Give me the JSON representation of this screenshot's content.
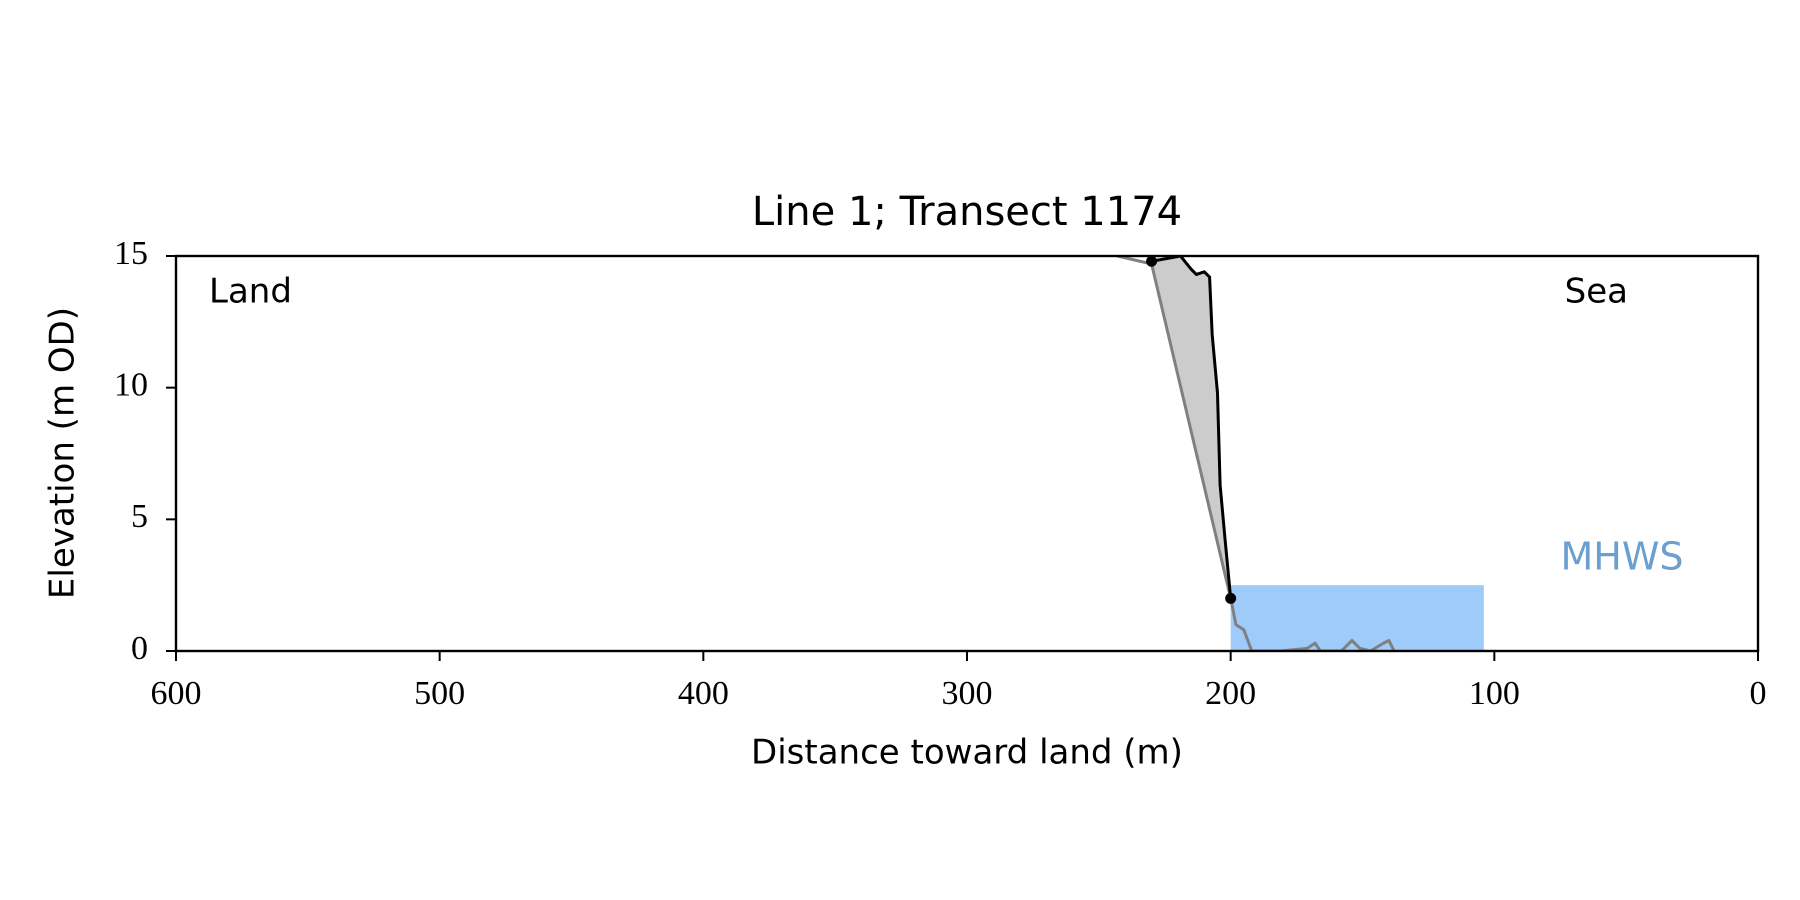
{
  "chart_data": {
    "type": "line",
    "title": "Line 1; Transect 1174",
    "x_label": "Distance toward land (m)",
    "y_label": "Elevation (m OD)",
    "annotations": [
      "Land",
      "Sea"
    ],
    "xlim": [
      600,
      0
    ],
    "xticks": [
      600,
      500,
      400,
      300,
      200,
      100,
      0
    ],
    "ylim": [
      0,
      15
    ],
    "yticks": [
      0,
      5,
      10,
      15
    ],
    "fill_between": {
      "color": "#cccccc"
    },
    "mhws": {
      "label": "MHWS",
      "level": 2.5,
      "xrange": [
        200,
        104
      ],
      "color": "#9ecbfa",
      "label_color": "#6a9fd0"
    },
    "series": [
      {
        "color": "#808080",
        "x": [
          243,
          230,
          200,
          198,
          195,
          192,
          181,
          171,
          168,
          166,
          158,
          154,
          151,
          147,
          142,
          140,
          138
        ],
        "values": [
          15,
          14.7,
          2,
          1.0,
          0.8,
          0,
          0,
          0.1,
          0.3,
          0,
          0,
          0.4,
          0.1,
          0,
          0.3,
          0.4,
          0
        ]
      },
      {
        "color": "#000000",
        "x": [
          230,
          219,
          215,
          213,
          210,
          208,
          207,
          205,
          204,
          202,
          200
        ],
        "values": [
          14.8,
          15,
          14.5,
          14.3,
          14.4,
          14.2,
          12,
          9.8,
          6.3,
          4.1,
          2
        ]
      },
      {
        "color": "#000000",
        "style": "markers",
        "x": [
          230,
          200
        ],
        "values": [
          14.8,
          2
        ]
      }
    ]
  }
}
